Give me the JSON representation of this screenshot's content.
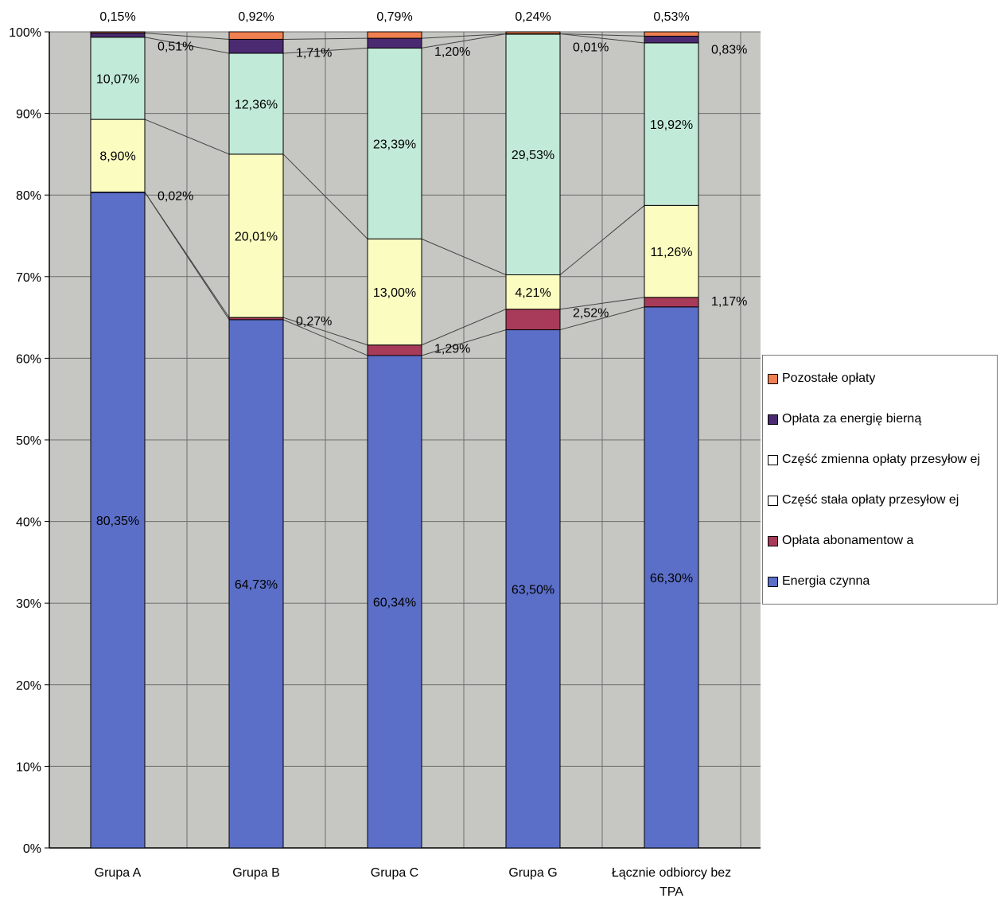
{
  "chart_data": {
    "type": "bar",
    "stacked": true,
    "percent_stacked": true,
    "title": "",
    "xlabel": "",
    "ylabel": "",
    "ylim": [
      0,
      100
    ],
    "yticks": [
      "0%",
      "10%",
      "20%",
      "30%",
      "40%",
      "50%",
      "60%",
      "70%",
      "80%",
      "90%",
      "100%"
    ],
    "grid": true,
    "legend_position": "right",
    "categories": [
      "Grupa A",
      "Grupa B",
      "Grupa C",
      "Grupa G",
      "Łącznie odbiorcy bez TPA"
    ],
    "series": [
      {
        "name": "Energia czynna",
        "color": "#5b6fc8",
        "values": [
          80.35,
          64.73,
          60.34,
          63.5,
          66.3
        ],
        "labels": [
          "80,35%",
          "64,73%",
          "60,34%",
          "63,50%",
          "66,30%"
        ]
      },
      {
        "name": "Opłata abonamentow a",
        "color": "#a83a5a",
        "values": [
          0.02,
          0.27,
          1.29,
          2.52,
          1.17
        ],
        "labels": [
          "0,02%",
          "0,27%",
          "1,29%",
          "2,52%",
          "1,17%"
        ]
      },
      {
        "name": "Część stała opłaty przesyłow ej",
        "color": "#fbfcc0",
        "values": [
          8.9,
          20.01,
          13.0,
          4.21,
          11.26
        ],
        "labels": [
          "8,90%",
          "20,01%",
          "13,00%",
          "4,21%",
          "11,26%"
        ]
      },
      {
        "name": "Część zmienna opłaty przesyłow ej",
        "color": "#c2ead8",
        "values": [
          10.07,
          12.36,
          23.39,
          29.53,
          19.92
        ],
        "labels": [
          "10,07%",
          "12,36%",
          "23,39%",
          "29,53%",
          "19,92%"
        ]
      },
      {
        "name": "Opłata za energię bierną",
        "color": "#4a2a70",
        "values": [
          0.51,
          1.71,
          1.2,
          0.01,
          0.83
        ],
        "labels": [
          "0,51%",
          "1,71%",
          "1,20%",
          "0,01%",
          "0,83%"
        ]
      },
      {
        "name": "Pozostałe opłaty",
        "color": "#f08050",
        "values": [
          0.15,
          0.92,
          0.79,
          0.24,
          0.53
        ],
        "labels": [
          "0,15%",
          "0,92%",
          "0,79%",
          "0,24%",
          "0,53%"
        ]
      }
    ]
  },
  "legend": {
    "items": [
      {
        "label": "Pozostałe opłaty",
        "color": "#f08050"
      },
      {
        "label": "Opłata za energię bierną",
        "color": "#4a2a70"
      },
      {
        "label": "Część zmienna opłaty przesyłow ej",
        "color": "#ffffff"
      },
      {
        "label": "Część stała opłaty przesyłow ej",
        "color": "#ffffff"
      },
      {
        "label": "Opłata abonamentow a",
        "color": "#a83a5a"
      },
      {
        "label": "Energia czynna",
        "color": "#5b6fc8"
      }
    ]
  },
  "colors": {
    "plot_background": "#c6c6c2",
    "gridline": "#6e6e6e"
  }
}
